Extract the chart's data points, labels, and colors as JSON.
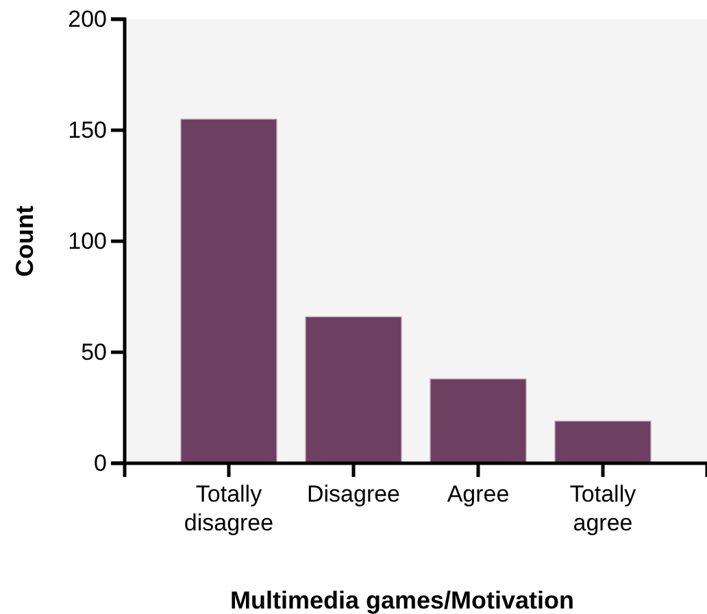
{
  "chart_data": {
    "type": "bar",
    "xlabel": "Multimedia games/Motivation",
    "ylabel": "Count",
    "categories": [
      "Totally disagree",
      "Disagree",
      "Agree",
      "Totally agree"
    ],
    "values": [
      155,
      66,
      38,
      19
    ],
    "color": "#6d3f60",
    "ylim": [
      0,
      200
    ],
    "yticks": [
      0,
      50,
      100,
      150,
      200
    ],
    "grid": false
  }
}
